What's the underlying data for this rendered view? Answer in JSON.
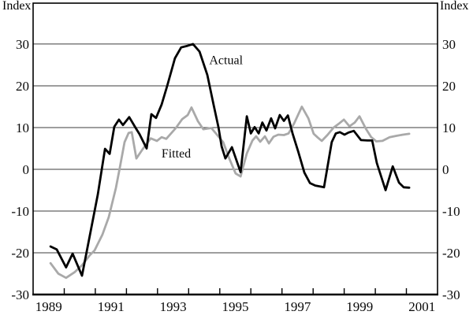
{
  "page": {
    "index_left": "Index",
    "index_right": "Index"
  },
  "chart_data": {
    "type": "line",
    "title": "",
    "xlabel": "",
    "ylabel_left": "Index",
    "ylabel_right": "Index",
    "xlim": [
      1989,
      2002
    ],
    "ylim": [
      -30,
      39.8
    ],
    "grid": "horizontal",
    "legend_position": "inline-annotations",
    "y_gridlines": [
      30,
      20,
      10,
      0,
      -10,
      -20
    ],
    "y_tick_labels": [
      "30",
      "20",
      "10",
      "0",
      "-10",
      "-20",
      "-30"
    ],
    "y_tick_values": [
      30,
      20,
      10,
      0,
      -10,
      -20,
      -30
    ],
    "x_ticks": [
      1990,
      1991,
      1992,
      1993,
      1994,
      1995,
      1996,
      1997,
      1998,
      1999,
      2000,
      2001
    ],
    "x_tick_labels": [
      {
        "label": "1989",
        "center": 1989.5
      },
      {
        "label": "1991",
        "center": 1991.5
      },
      {
        "label": "1993",
        "center": 1993.5
      },
      {
        "label": "1995",
        "center": 1995.5
      },
      {
        "label": "1997",
        "center": 1997.5
      },
      {
        "label": "1999",
        "center": 1999.5
      },
      {
        "label": "2001",
        "center": 2001.5
      }
    ],
    "series": [
      {
        "name": "Fitted",
        "color": "#a9a9a9",
        "width": 2.8,
        "label_pos": {
          "t": 1993.6,
          "v": 4.0
        },
        "points": [
          [
            1989.56,
            -22.5
          ],
          [
            1989.81,
            -25.0
          ],
          [
            1990.06,
            -26.0
          ],
          [
            1990.34,
            -24.6
          ],
          [
            1990.57,
            -23.0
          ],
          [
            1990.82,
            -20.6
          ],
          [
            1990.98,
            -19.4
          ],
          [
            1991.23,
            -15.6
          ],
          [
            1991.43,
            -11.5
          ],
          [
            1991.66,
            -4.5
          ],
          [
            1991.79,
            0.5
          ],
          [
            1991.94,
            6.5
          ],
          [
            1992.07,
            8.7
          ],
          [
            1992.17,
            8.9
          ],
          [
            1992.32,
            2.6
          ],
          [
            1992.52,
            4.8
          ],
          [
            1992.78,
            7.4
          ],
          [
            1992.98,
            6.8
          ],
          [
            1993.13,
            7.7
          ],
          [
            1993.28,
            7.3
          ],
          [
            1993.59,
            9.9
          ],
          [
            1993.79,
            12.0
          ],
          [
            1993.97,
            13.0
          ],
          [
            1994.09,
            14.8
          ],
          [
            1994.3,
            11.5
          ],
          [
            1994.47,
            9.6
          ],
          [
            1994.73,
            9.9
          ],
          [
            1994.93,
            8.1
          ],
          [
            1995.11,
            6.5
          ],
          [
            1995.31,
            2.5
          ],
          [
            1995.51,
            -1.0
          ],
          [
            1995.67,
            -1.7
          ],
          [
            1995.87,
            3.8
          ],
          [
            1996.05,
            6.9
          ],
          [
            1996.17,
            7.9
          ],
          [
            1996.3,
            6.6
          ],
          [
            1996.45,
            7.9
          ],
          [
            1996.58,
            6.2
          ],
          [
            1996.73,
            7.8
          ],
          [
            1996.88,
            8.3
          ],
          [
            1997.06,
            8.2
          ],
          [
            1997.21,
            8.6
          ],
          [
            1997.39,
            11.0
          ],
          [
            1997.64,
            15.0
          ],
          [
            1997.85,
            12.2
          ],
          [
            1998.02,
            8.5
          ],
          [
            1998.15,
            7.6
          ],
          [
            1998.28,
            6.8
          ],
          [
            1998.46,
            8.2
          ],
          [
            1998.66,
            10.0
          ],
          [
            1998.84,
            11.0
          ],
          [
            1998.99,
            11.9
          ],
          [
            1999.17,
            10.3
          ],
          [
            1999.34,
            11.2
          ],
          [
            1999.49,
            12.7
          ],
          [
            1999.7,
            9.7
          ],
          [
            1999.87,
            7.7
          ],
          [
            2000.03,
            6.7
          ],
          [
            2000.23,
            6.8
          ],
          [
            2000.46,
            7.7
          ],
          [
            2000.66,
            8.0
          ],
          [
            2000.89,
            8.3
          ],
          [
            2001.09,
            8.5
          ]
        ]
      },
      {
        "name": "Actual",
        "color": "#000000",
        "width": 2.8,
        "label_pos": {
          "t": 1995.2,
          "v": 26.3
        },
        "points": [
          [
            1989.56,
            -18.5
          ],
          [
            1989.76,
            -19.2
          ],
          [
            1990.06,
            -23.5
          ],
          [
            1990.27,
            -20.2
          ],
          [
            1990.57,
            -25.5
          ],
          [
            1990.82,
            -16.0
          ],
          [
            1991.08,
            -6.0
          ],
          [
            1991.31,
            4.9
          ],
          [
            1991.46,
            3.7
          ],
          [
            1991.61,
            10.2
          ],
          [
            1991.76,
            11.9
          ],
          [
            1991.89,
            10.6
          ],
          [
            1992.09,
            12.5
          ],
          [
            1992.29,
            10.0
          ],
          [
            1992.42,
            8.4
          ],
          [
            1992.65,
            5.0
          ],
          [
            1992.8,
            13.2
          ],
          [
            1992.95,
            12.3
          ],
          [
            1993.13,
            15.5
          ],
          [
            1993.31,
            20.0
          ],
          [
            1993.56,
            26.6
          ],
          [
            1993.76,
            29.2
          ],
          [
            1993.97,
            29.6
          ],
          [
            1994.14,
            30.0
          ],
          [
            1994.35,
            28.2
          ],
          [
            1994.6,
            22.6
          ],
          [
            1994.8,
            15.5
          ],
          [
            1994.96,
            10.0
          ],
          [
            1995.06,
            5.5
          ],
          [
            1995.18,
            2.6
          ],
          [
            1995.39,
            5.3
          ],
          [
            1995.67,
            -0.7
          ],
          [
            1995.87,
            12.7
          ],
          [
            1996.0,
            8.6
          ],
          [
            1996.12,
            10.1
          ],
          [
            1996.25,
            8.6
          ],
          [
            1996.37,
            11.2
          ],
          [
            1996.5,
            9.3
          ],
          [
            1996.65,
            12.2
          ],
          [
            1996.78,
            9.8
          ],
          [
            1996.93,
            13.0
          ],
          [
            1997.06,
            11.6
          ],
          [
            1997.19,
            12.9
          ],
          [
            1997.34,
            8.6
          ],
          [
            1997.52,
            4.3
          ],
          [
            1997.72,
            -0.8
          ],
          [
            1997.9,
            -3.3
          ],
          [
            1998.07,
            -3.9
          ],
          [
            1998.35,
            -4.3
          ],
          [
            1998.6,
            6.5
          ],
          [
            1998.73,
            8.6
          ],
          [
            1998.86,
            8.9
          ],
          [
            1999.01,
            8.3
          ],
          [
            1999.14,
            8.8
          ],
          [
            1999.31,
            9.2
          ],
          [
            1999.54,
            7.0
          ],
          [
            1999.75,
            6.9
          ],
          [
            1999.9,
            6.9
          ],
          [
            2000.05,
            1.5
          ],
          [
            2000.33,
            -5.0
          ],
          [
            2000.56,
            0.7
          ],
          [
            2000.76,
            -3.2
          ],
          [
            2000.91,
            -4.3
          ],
          [
            2001.09,
            -4.4
          ]
        ]
      }
    ]
  }
}
